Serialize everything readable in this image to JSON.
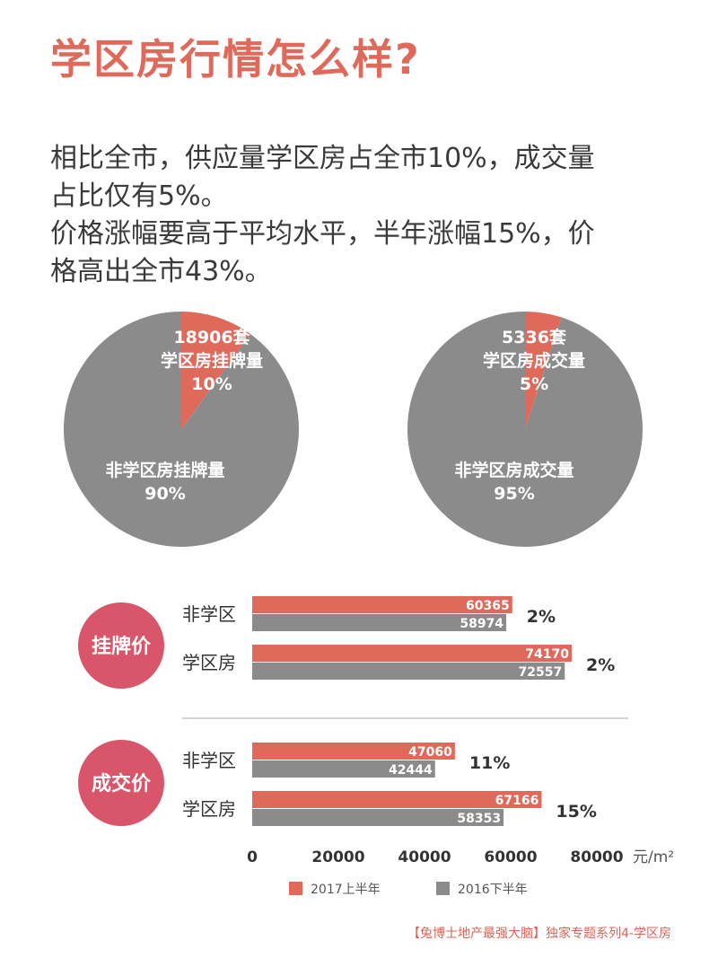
{
  "title": "学区房行情怎么样?",
  "summary": [
    "相比全市，供应量学区房占全市10%，成交量",
    "占比仅有5%。",
    "价格涨幅要高于平均水平，半年涨幅15%，价",
    "格高出全市43%。"
  ],
  "colors": {
    "accent": "#df6a5c",
    "gray": "#8b8b8b",
    "text": "#333333"
  },
  "chart_data": [
    {
      "type": "pie",
      "slices": [
        {
          "lines": [
            "18906套",
            "学区房挂牌量",
            "10%"
          ],
          "value": 10,
          "color": "#df6a5c"
        },
        {
          "lines": [
            "非学区房挂牌量",
            "90%"
          ],
          "value": 90,
          "color": "#8b8b8b"
        }
      ]
    },
    {
      "type": "pie",
      "slices": [
        {
          "lines": [
            "5336套",
            "学区房成交量",
            "5%"
          ],
          "value": 5,
          "color": "#df6a5c"
        },
        {
          "lines": [
            "非学区房成交量",
            "95%"
          ],
          "value": 95,
          "color": "#8b8b8b"
        }
      ]
    },
    {
      "type": "bar",
      "orientation": "horizontal",
      "xlim": [
        0,
        80000
      ],
      "xticks": [
        "0",
        "20000",
        "40000",
        "60000",
        "80000"
      ],
      "unit": "元/m²",
      "legend": [
        {
          "name": "2017上半年",
          "color": "#df6a5c"
        },
        {
          "name": "2016下半年",
          "color": "#8b8b8b"
        }
      ],
      "groups": [
        {
          "badge": "挂牌价",
          "rows": [
            {
              "label": "非学区",
              "values": [
                60365,
                58974
              ],
              "growth": "2%"
            },
            {
              "label": "学区房",
              "values": [
                74170,
                72557
              ],
              "growth": "2%"
            }
          ]
        },
        {
          "badge": "成交价",
          "rows": [
            {
              "label": "非学区",
              "values": [
                47060,
                42444
              ],
              "growth": "11%"
            },
            {
              "label": "学区房",
              "values": [
                67166,
                58353
              ],
              "growth": "15%"
            }
          ]
        }
      ]
    }
  ],
  "footer": "【兔博士地产最强大脑】独家专题系列4-学区房"
}
